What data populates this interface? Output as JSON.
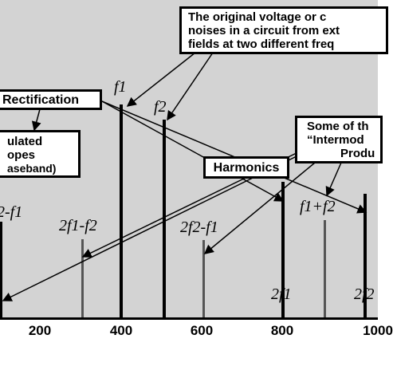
{
  "boxes": {
    "original": [
      "The original voltage or c",
      "noises in a circuit from ext",
      "fields at two different freq"
    ],
    "rectification": "Rectification",
    "demodulated": [
      "ulated",
      "opes",
      "aseband)"
    ],
    "harmonics": "Harmonics",
    "intermod": [
      "Some of th",
      "“Intermod",
      "Produ"
    ]
  },
  "spectral_labels": {
    "f1": "f1",
    "f2": "f2",
    "f2_minus_f1_left": "2-f1",
    "two_f1_minus_f2": "2f1-f2",
    "two_f2_minus_f1": "2f2-f1",
    "f1_plus_f2": "f1+f2",
    "two_f1": "2f1",
    "two_f2": "2f2"
  },
  "axis": {
    "ticks": [
      "200",
      "400",
      "600",
      "800",
      "1000"
    ]
  },
  "colors": {
    "background": "#d3d3d3",
    "lines": "#000000",
    "box_fill": "#ffffff"
  }
}
